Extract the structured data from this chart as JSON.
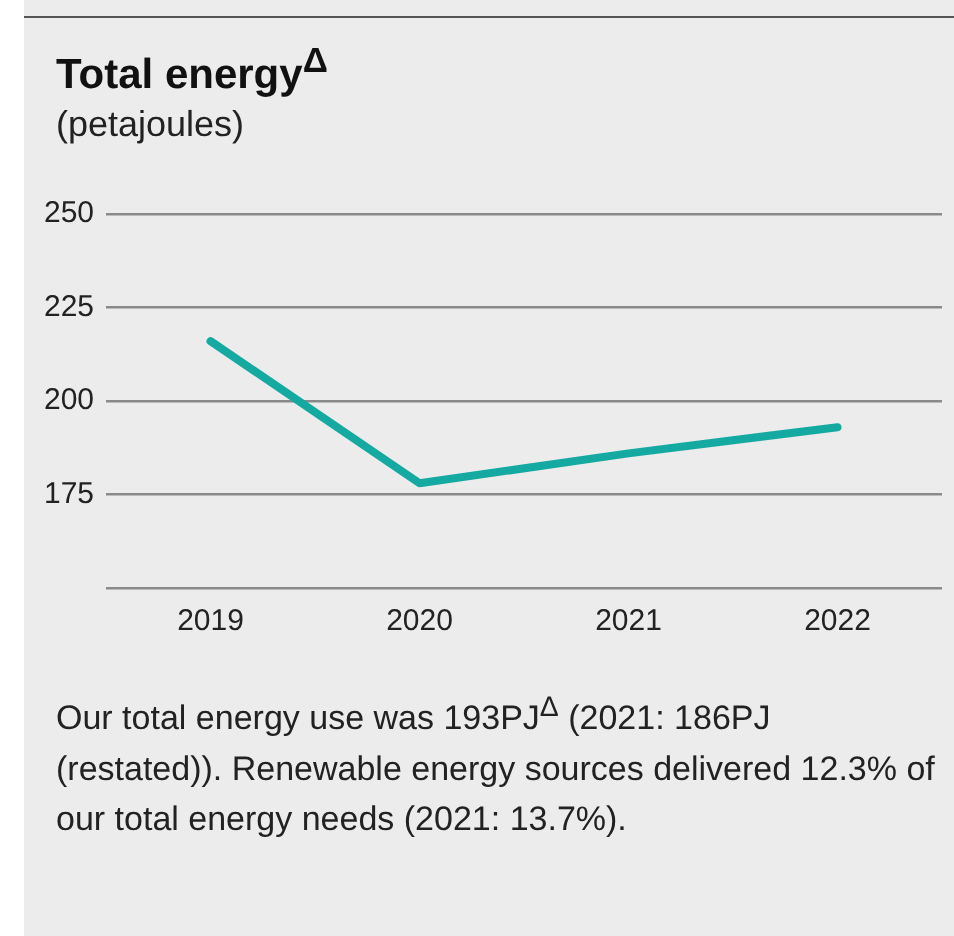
{
  "chart_data": {
    "type": "line",
    "title": "Total energy$^{Δ}$",
    "subtitle": "(petajoules)",
    "categories": [
      "2019",
      "2020",
      "2021",
      "2022"
    ],
    "series": [
      {
        "color": "#14a9a1",
        "values": [
          216,
          178,
          186,
          193
        ]
      }
    ],
    "ylim": [
      150,
      250
    ],
    "yticks": [
      {
        "value": 150,
        "label": null
      },
      175,
      200,
      225,
      250
    ],
    "grid": "y",
    "legend": false,
    "marker": "none",
    "line_style": "solid",
    "annotations": [
      "Our total energy use was 193PJ$^{Δ}$ (2021: 186PJ (restated)). Renewable energy sources delivered 12.3% of our total energy needs (2021: 13.7%)."
    ]
  }
}
